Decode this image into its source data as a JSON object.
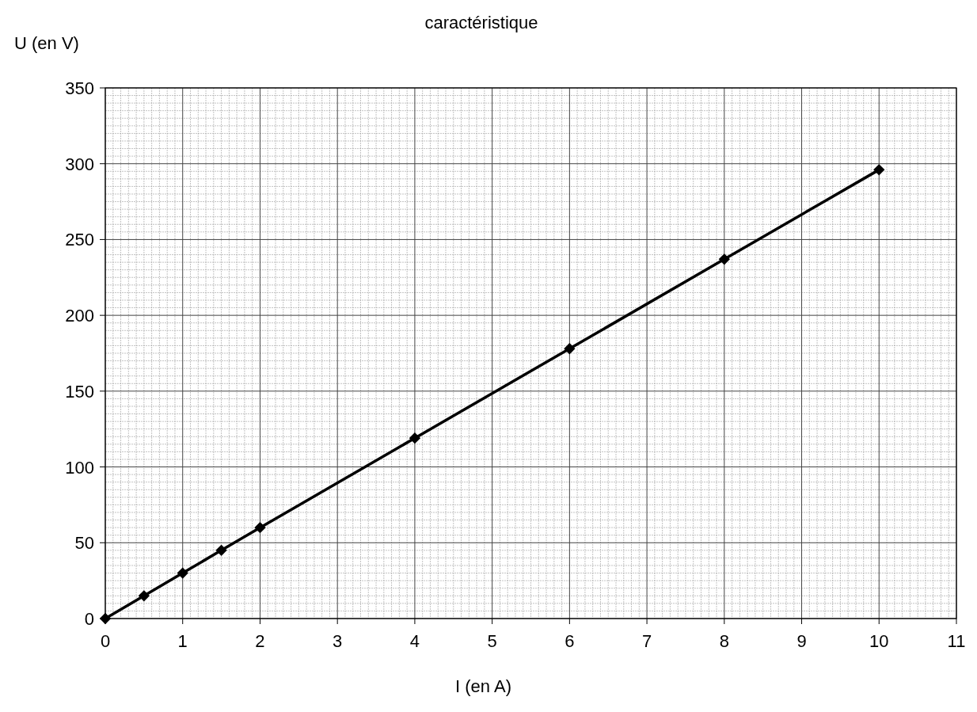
{
  "chart_data": {
    "type": "line",
    "title": "caractéristique",
    "xlabel": "I (en A)",
    "ylabel": "U (en V)",
    "x": [
      0,
      0.5,
      1,
      1.5,
      2,
      4,
      6,
      8,
      10
    ],
    "series": [
      {
        "color": "#000000",
        "values": [
          0,
          15,
          30,
          45,
          60,
          119,
          178,
          237,
          296
        ]
      }
    ],
    "xlim": [
      0,
      11
    ],
    "xticks": [
      0,
      1,
      2,
      3,
      4,
      5,
      6,
      7,
      8,
      9,
      10,
      11
    ],
    "ylim": [
      0,
      350
    ],
    "yticks": [
      0,
      50,
      100,
      150,
      200,
      250,
      300,
      350
    ],
    "grid": true,
    "marker": "diamond",
    "line_style": "solid"
  }
}
